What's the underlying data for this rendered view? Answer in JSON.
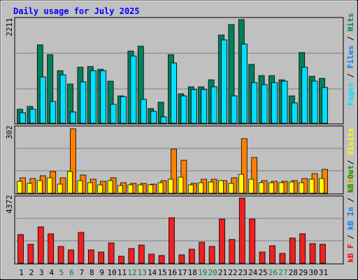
{
  "title": "Daily usage for July 2025",
  "colors": {
    "background": "#c0c0c0",
    "panel": "#c0c0c0",
    "grid": "#808080",
    "title": "#0000ff",
    "axis_text": "#000000",
    "weekend_day": "#008040",
    "hits": "#00805c",
    "files": "#0080ff",
    "pages": "#00e0ff",
    "visits": "#ffff00",
    "sites": "#ff8000",
    "kb_in": "#0080ff",
    "kb_out": "#00a000",
    "kb_f": "#ff0000",
    "kb_bar": "#ee2020"
  },
  "chart_data": [
    {
      "type": "bar",
      "panel": "top",
      "ymax_label": "2211",
      "ylim": [
        0,
        2211
      ],
      "categories": [
        "1",
        "2",
        "3",
        "4",
        "5",
        "6",
        "7",
        "8",
        "9",
        "10",
        "11",
        "12",
        "13",
        "14",
        "15",
        "16",
        "17",
        "18",
        "19",
        "20",
        "21",
        "22",
        "23",
        "24",
        "25",
        "26",
        "27",
        "28",
        "29",
        "30",
        "31"
      ],
      "weekend_days": [
        5,
        6,
        12,
        13,
        19,
        20,
        26,
        27
      ],
      "right_legend": [
        "Pages",
        "/",
        "Files",
        "/",
        "Hits"
      ],
      "series": [
        {
          "name": "Hits",
          "color_key": "hits",
          "values": [
            300,
            360,
            1670,
            1460,
            1120,
            840,
            1190,
            1210,
            1150,
            890,
            590,
            1540,
            1640,
            310,
            450,
            1470,
            620,
            780,
            770,
            920,
            1880,
            2110,
            2210,
            1250,
            1010,
            1020,
            930,
            590,
            1510,
            1000,
            950
          ]
        },
        {
          "name": "Files",
          "color_key": "files",
          "values": [
            220,
            300,
            990,
            460,
            1030,
            240,
            880,
            1120,
            1120,
            410,
            570,
            1430,
            510,
            250,
            140,
            1280,
            580,
            720,
            720,
            770,
            1780,
            590,
            1690,
            870,
            820,
            860,
            900,
            430,
            1190,
            890,
            760
          ]
        },
        {
          "name": "Pages",
          "color_key": "pages",
          "values": [
            220,
            300,
            990,
            460,
            1030,
            240,
            880,
            1120,
            1120,
            410,
            570,
            1430,
            510,
            250,
            140,
            1280,
            580,
            720,
            720,
            770,
            1780,
            590,
            1690,
            870,
            820,
            860,
            900,
            430,
            1190,
            890,
            760
          ]
        }
      ]
    },
    {
      "type": "bar",
      "panel": "middle",
      "ymax_label": "302",
      "ylim": [
        0,
        302
      ],
      "categories": [
        "1",
        "2",
        "3",
        "4",
        "5",
        "6",
        "7",
        "8",
        "9",
        "10",
        "11",
        "12",
        "13",
        "14",
        "15",
        "16",
        "17",
        "18",
        "19",
        "20",
        "21",
        "22",
        "23",
        "24",
        "25",
        "26",
        "27",
        "28",
        "29",
        "30",
        "31"
      ],
      "right_legend": [
        "Visits",
        "/",
        "Sites"
      ],
      "series": [
        {
          "name": "Sites",
          "color_key": "sites",
          "values": [
            72,
            68,
            80,
            100,
            70,
            300,
            84,
            66,
            56,
            70,
            50,
            44,
            45,
            42,
            60,
            204,
            154,
            46,
            64,
            66,
            60,
            72,
            252,
            166,
            60,
            56,
            56,
            60,
            68,
            92,
            110
          ]
        },
        {
          "name": "Visits",
          "color_key": "visits",
          "values": [
            56,
            44,
            60,
            70,
            42,
            100,
            60,
            48,
            40,
            60,
            36,
            38,
            40,
            40,
            50,
            66,
            74,
            40,
            50,
            52,
            58,
            44,
            88,
            66,
            48,
            48,
            48,
            52,
            50,
            66,
            68
          ]
        }
      ]
    },
    {
      "type": "bar",
      "panel": "bottom",
      "ymax_label": "4372",
      "ylim": [
        0,
        4372
      ],
      "categories": [
        "1",
        "2",
        "3",
        "4",
        "5",
        "6",
        "7",
        "8",
        "9",
        "10",
        "11",
        "12",
        "13",
        "14",
        "15",
        "16",
        "17",
        "18",
        "19",
        "20",
        "21",
        "22",
        "23",
        "24",
        "25",
        "26",
        "27",
        "28",
        "29",
        "30",
        "31"
      ],
      "right_legend": [
        "kB F",
        "/",
        "kB In",
        "/",
        "kB Out"
      ],
      "series": [
        {
          "name": "kB F",
          "color_key": "kb_bar",
          "values": [
            1930,
            1290,
            2450,
            1990,
            1140,
            880,
            2050,
            900,
            740,
            1350,
            470,
            990,
            1240,
            620,
            500,
            3050,
            560,
            920,
            1400,
            1150,
            2960,
            1580,
            4372,
            2980,
            730,
            1190,
            640,
            1690,
            1990,
            1320,
            1290
          ]
        }
      ]
    }
  ]
}
